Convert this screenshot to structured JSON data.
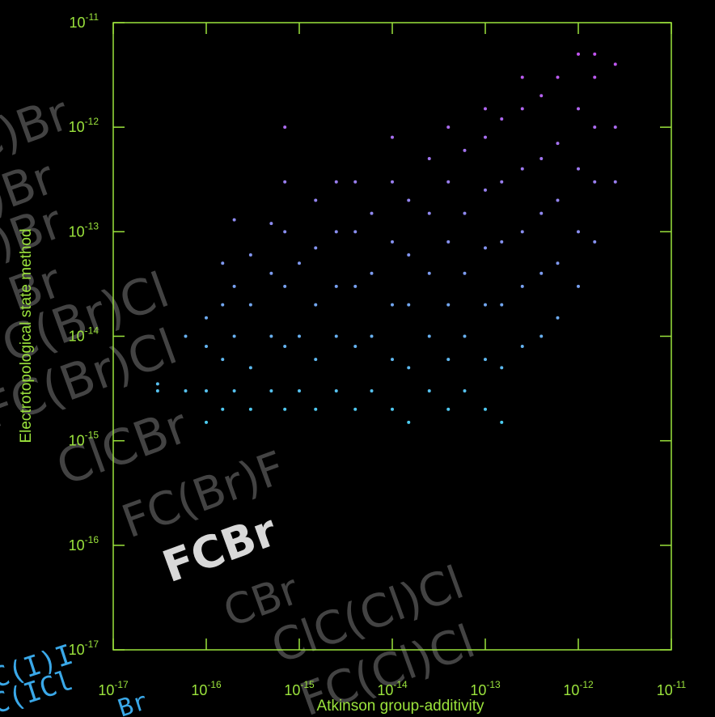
{
  "chart_data": {
    "type": "scatter",
    "x_label": "Atkinson group-additivity",
    "y_label": "Electrotopological state method",
    "log_x": true,
    "log_y": true,
    "xlim": [
      1e-17,
      1e-11
    ],
    "ylim": [
      1e-17,
      1e-11
    ],
    "xticks": [
      {
        "value": 1e-17,
        "label": "10",
        "exp": "-17"
      },
      {
        "value": 1e-16,
        "label": "10",
        "exp": "-16"
      },
      {
        "value": 1e-15,
        "label": "10",
        "exp": "-15"
      },
      {
        "value": 1e-14,
        "label": "10",
        "exp": "-14"
      },
      {
        "value": 1e-13,
        "label": "10",
        "exp": "-13"
      },
      {
        "value": 1e-12,
        "label": "10",
        "exp": "-12"
      },
      {
        "value": 1e-11,
        "label": "10",
        "exp": "-11"
      }
    ],
    "yticks": [
      {
        "value": 1e-17,
        "label": "10",
        "exp": "-17"
      },
      {
        "value": 1e-16,
        "label": "10",
        "exp": "-16"
      },
      {
        "value": 1e-15,
        "label": "10",
        "exp": "-15"
      },
      {
        "value": 1e-14,
        "label": "10",
        "exp": "-14"
      },
      {
        "value": 1e-13,
        "label": "10",
        "exp": "-13"
      },
      {
        "value": 1e-12,
        "label": "10",
        "exp": "-12"
      },
      {
        "value": 1e-11,
        "label": "10",
        "exp": "-11"
      }
    ],
    "axis_color": "#9be33c",
    "color_low": "#48d0f0",
    "color_high": "#c650f0",
    "series": [
      {
        "x": [
          3e-17,
          3e-17,
          6e-17,
          6e-17,
          1e-16,
          1e-16,
          1e-16,
          1e-16,
          1.5e-16,
          1.5e-16,
          1.5e-16,
          1.5e-16,
          2e-16,
          2e-16,
          2e-16,
          2e-16,
          3e-16,
          3e-16,
          3e-16,
          3e-16,
          5e-16,
          5e-16,
          5e-16,
          5e-16,
          7e-16,
          7e-16,
          7e-16,
          7e-16,
          7e-16,
          7e-16,
          1e-15,
          1e-15,
          1e-15,
          1.5e-15,
          1.5e-15,
          1.5e-15,
          1.5e-15,
          1.5e-15,
          2.5e-15,
          2.5e-15,
          2.5e-15,
          2.5e-15,
          2.5e-15,
          4e-15,
          4e-15,
          4e-15,
          4e-15,
          4e-15,
          6e-15,
          6e-15,
          6e-15,
          6e-15,
          1e-14,
          1e-14,
          1e-14,
          1e-14,
          1e-14,
          1e-14,
          1.5e-14,
          1.5e-14,
          1.5e-14,
          1.5e-14,
          1.5e-14,
          2.5e-14,
          2.5e-14,
          2.5e-14,
          2.5e-14,
          2.5e-14,
          4e-14,
          4e-14,
          4e-14,
          4e-14,
          4e-14,
          4e-14,
          6e-14,
          6e-14,
          6e-14,
          6e-14,
          6e-14,
          1e-13,
          1e-13,
          1e-13,
          1e-13,
          1e-13,
          1e-13,
          1e-13,
          1.5e-13,
          1.5e-13,
          1.5e-13,
          1.5e-13,
          1.5e-13,
          1.5e-13,
          2.5e-13,
          2.5e-13,
          2.5e-13,
          2.5e-13,
          2.5e-13,
          2.5e-13,
          4e-13,
          4e-13,
          4e-13,
          4e-13,
          4e-13,
          6e-13,
          6e-13,
          6e-13,
          6e-13,
          6e-13,
          1e-12,
          1e-12,
          1e-12,
          1e-12,
          1e-12,
          1.5e-12,
          1.5e-12,
          1.5e-12,
          1.5e-12,
          1.5e-12,
          2.5e-12,
          2.5e-12,
          2.5e-12
        ],
        "values": [
          3e-15,
          3.5e-15,
          3e-15,
          1e-14,
          1.5e-15,
          3e-15,
          8e-15,
          1.5e-14,
          2e-15,
          6e-15,
          2e-14,
          5e-14,
          3e-15,
          1e-14,
          3e-14,
          1.3e-13,
          2e-15,
          5e-15,
          2e-14,
          6e-14,
          3e-15,
          1e-14,
          4e-14,
          1.2e-13,
          2e-15,
          8e-15,
          3e-14,
          1e-13,
          3e-13,
          1e-12,
          3e-15,
          1e-14,
          5e-14,
          2e-15,
          6e-15,
          2e-14,
          7e-14,
          2e-13,
          3e-15,
          1e-14,
          3e-14,
          1e-13,
          3e-13,
          2e-15,
          8e-15,
          3e-14,
          1e-13,
          3e-13,
          3e-15,
          1e-14,
          4e-14,
          1.5e-13,
          2e-15,
          6e-15,
          2e-14,
          8e-14,
          3e-13,
          8e-13,
          1.5e-15,
          5e-15,
          2e-14,
          6e-14,
          2e-13,
          3e-15,
          1e-14,
          4e-14,
          1.5e-13,
          5e-13,
          2e-15,
          6e-15,
          2e-14,
          8e-14,
          3e-13,
          1e-12,
          3e-15,
          1e-14,
          4e-14,
          1.5e-13,
          6e-13,
          2e-15,
          6e-15,
          2e-14,
          7e-14,
          2.5e-13,
          8e-13,
          1.5e-12,
          1.5e-15,
          5e-15,
          2e-14,
          8e-14,
          3e-13,
          1.2e-12,
          8e-15,
          3e-14,
          1e-13,
          4e-13,
          1.5e-12,
          3e-12,
          1e-14,
          4e-14,
          1.5e-13,
          5e-13,
          2e-12,
          1.5e-14,
          5e-14,
          2e-13,
          7e-13,
          3e-12,
          3e-14,
          1e-13,
          4e-13,
          1.5e-12,
          5e-12,
          8e-14,
          3e-13,
          1e-12,
          3e-12,
          5e-12,
          3e-13,
          1e-12,
          4e-12
        ]
      }
    ],
    "annotations": [
      "C)Br",
      ")Br",
      ")Br",
      "Br",
      "FC(Br)Cl",
      "FC(Br)Cl",
      "ClCBr",
      "FC(Br)F",
      "FCBr",
      "CBr",
      "ClC(Cl)Cl",
      "FC(Cl)Cl",
      "C(I)I",
      "C(ICl",
      "Br"
    ]
  }
}
